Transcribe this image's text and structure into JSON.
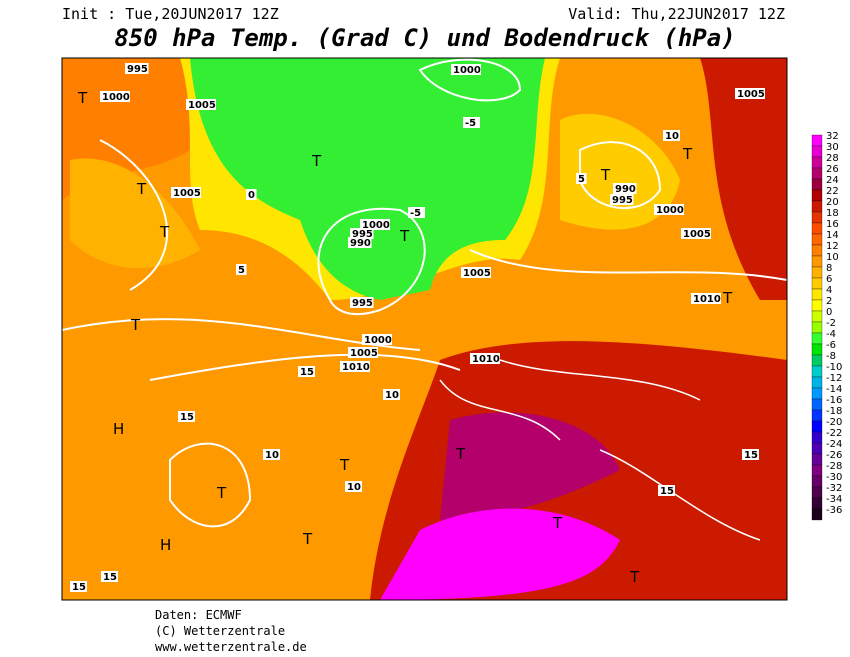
{
  "header": {
    "init": "Init : Tue,20JUN2017 12Z",
    "valid": "Valid: Thu,22JUN2017 12Z",
    "title": "850 hPa Temp. (Grad C) und Bodendruck (hPa)"
  },
  "legend": {
    "levels": [
      32,
      30,
      28,
      26,
      24,
      22,
      20,
      18,
      16,
      14,
      12,
      10,
      8,
      6,
      4,
      2,
      0,
      -2,
      -4,
      -6,
      -8,
      -10,
      -12,
      -14,
      -16,
      -18,
      -20,
      -22,
      -24,
      -26,
      -28,
      -30,
      -32,
      -34,
      -36
    ],
    "colors": [
      "#ff00ff",
      "#e800d0",
      "#cc0099",
      "#b3006b",
      "#99003d",
      "#b30000",
      "#cc1a00",
      "#e63300",
      "#ff4d00",
      "#ff6600",
      "#ff8000",
      "#ff9900",
      "#ffb300",
      "#ffcc00",
      "#ffe600",
      "#ffff00",
      "#ccff00",
      "#99ff00",
      "#33ff33",
      "#00e600",
      "#00cc66",
      "#00cccc",
      "#00b3e6",
      "#0099ff",
      "#0066ff",
      "#0033ff",
      "#0000ff",
      "#3300cc",
      "#4d00b3",
      "#660099",
      "#800080",
      "#660066",
      "#4d004d",
      "#330033",
      "#1a001a"
    ]
  },
  "map_labels": [
    "T",
    "T",
    "T",
    "T",
    "H",
    "T",
    "H",
    "T",
    "T",
    "T",
    "T",
    "T",
    "T",
    "T",
    "T",
    "T",
    "T",
    "1000",
    "1005",
    "1005",
    "995",
    "990",
    "1000",
    "995",
    "1000",
    "1005",
    "1010",
    "1005",
    "1010",
    "990",
    "995",
    "1000",
    "1005",
    "1010",
    "1005",
    "1000",
    "995",
    "15",
    "15",
    "10",
    "10",
    "10",
    "5",
    "0",
    "-5",
    "-5",
    "5",
    "10",
    "15",
    "15",
    "15",
    "15"
  ],
  "footer": {
    "source": "Daten: ECMWF",
    "copyright": "(C) Wetterzentrale",
    "url": "www.wetterzentrale.de"
  }
}
